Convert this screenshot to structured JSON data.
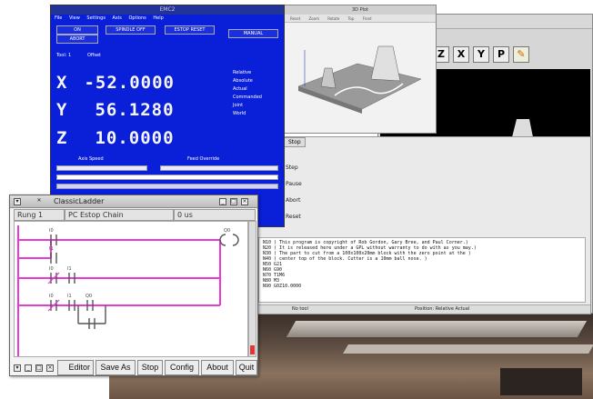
{
  "emc": {
    "title": "EMC2",
    "menu": "File  View  Settings  Axis  Options  Help",
    "buttons": [
      "ON",
      "ABORT",
      "SPINDLE OFF",
      "ESTOP RESET",
      "MANUAL"
    ],
    "x_label": "X",
    "x_value": "-52.0000",
    "y_label": "Y",
    "y_value": "56.1280",
    "z_label": "Z",
    "z_value": "10.0000",
    "tool": "Tool: 1",
    "offset": "Offset",
    "side_items": [
      "Relative",
      "Absolute",
      "Actual",
      "Commanded",
      "Joint",
      "World"
    ],
    "speed_label": "Axis Speed",
    "feed_label": "Feed Override"
  },
  "plot": {
    "title": "3D Plot",
    "toolbar": "Reset Zoom Rotate Top Front"
  },
  "preview": {
    "tools": [
      "Z",
      "X",
      "Y",
      "P"
    ]
  },
  "program": {
    "tabs": [
      "Stop"
    ],
    "labels": [
      "Step",
      "Pause",
      "Abort",
      "Reset"
    ],
    "lines": [
      "N10 ( This program is copyright of Rob Gordon, Gary Bree, and Paul Corner.)",
      "N20 ( It is released here under a GPL without warranty to do with as you may.)",
      "N30 ( The part to cut from a 100x100x20mm block with the zero point at the )",
      "N40 ( center top of the block. Cutter is a 10mm ball nose. )",
      "N50 G21",
      "N60 G90",
      "N70 T1M6",
      "N80 M3",
      "N90 G0Z10.0000"
    ],
    "status_left": "No tool",
    "status_right": "Position: Relative Actual"
  },
  "ladder": {
    "title": "ClassicLadder",
    "col1": "Rung 1",
    "col2": "PC Estop Chain",
    "col3": "0 us",
    "buttons": [
      "Editor",
      "Save As",
      "Stop",
      "Config",
      "About",
      "Quit"
    ]
  },
  "colors": {
    "emc_blue": "#0a1fd8",
    "ladder_pink": "#e83ad6"
  }
}
